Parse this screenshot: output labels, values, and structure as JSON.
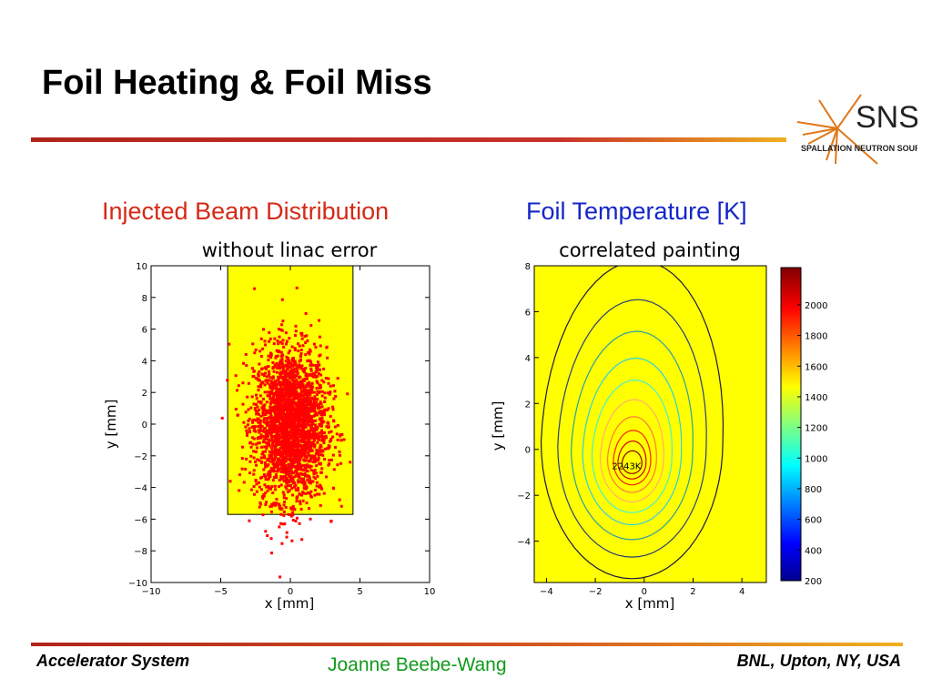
{
  "slide": {
    "title": "Foil Heating & Foil Miss",
    "left_heading": "Injected Beam Distribution",
    "right_heading": "Foil Temperature [K]"
  },
  "logo": {
    "text": "SNS",
    "subtext": "SPALLATION NEUTRON SOURCE"
  },
  "footer": {
    "left": "Accelerator System",
    "center": "Joanne Beebe-Wang",
    "right": "BNL, Upton, NY, USA"
  },
  "colors": {
    "title_rule": "#c8322a",
    "left_heading": "#d42a16",
    "right_heading": "#1426c8",
    "footer_center": "#109a1a",
    "foil": "#ffff00",
    "beam": "#ff0000"
  },
  "chart_data": [
    {
      "type": "scatter",
      "title": "without linac error",
      "xlabel": "x [mm]",
      "ylabel": "y [mm]",
      "xlim": [
        -10,
        10
      ],
      "ylim": [
        -10,
        10
      ],
      "xticks": [
        -10,
        -5,
        0,
        5,
        10
      ],
      "yticks": [
        -10,
        -8,
        -6,
        -4,
        -2,
        0,
        2,
        4,
        6,
        8,
        10
      ],
      "foil_region": {
        "x": [
          -4.5,
          4.5
        ],
        "y": [
          -5.7,
          10
        ]
      },
      "beam": {
        "center": [
          0,
          0
        ],
        "sigma_x": 1.3,
        "sigma_y": 2.4,
        "marker_color": "#ff0000"
      },
      "grid": false
    },
    {
      "type": "contour",
      "title": "correlated painting",
      "xlabel": "x [mm]",
      "ylabel": "y [mm]",
      "xlim": [
        -4.5,
        5
      ],
      "ylim": [
        -5.8,
        8
      ],
      "xticks": [
        -4,
        -2,
        0,
        2,
        4
      ],
      "yticks": [
        -4,
        -2,
        0,
        2,
        4,
        6,
        8
      ],
      "peak": {
        "x": -0.5,
        "y": -0.7,
        "label": "2243K"
      },
      "colorbar": {
        "ticks": [
          200,
          400,
          600,
          800,
          1000,
          1200,
          1400,
          1600,
          1800,
          2000
        ],
        "range": [
          200,
          2243
        ]
      },
      "grid": false
    }
  ]
}
